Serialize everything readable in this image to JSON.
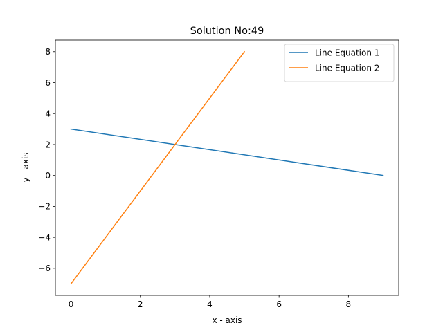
{
  "chart_data": {
    "type": "line",
    "title": "Solution No:49",
    "xlabel": "x - axis",
    "ylabel": "y - axis",
    "xlim": [
      -0.45,
      9.45
    ],
    "ylim": [
      -7.75,
      8.75
    ],
    "xticks": [
      0,
      2,
      4,
      6,
      8
    ],
    "yticks": [
      -6,
      -4,
      -2,
      0,
      2,
      4,
      6,
      8
    ],
    "xtick_labels": [
      "0",
      "2",
      "4",
      "6",
      "8"
    ],
    "ytick_labels": [
      "−6",
      "−4",
      "−2",
      "0",
      "2",
      "4",
      "6",
      "8"
    ],
    "grid": false,
    "legend_position": "top-right",
    "series": [
      {
        "name": "Line Equation 1",
        "color": "#1f77b4",
        "x": [
          0,
          9
        ],
        "y": [
          3,
          0
        ]
      },
      {
        "name": "Line Equation 2",
        "color": "#ff7f0e",
        "x": [
          0,
          5
        ],
        "y": [
          -7,
          8
        ]
      }
    ]
  }
}
